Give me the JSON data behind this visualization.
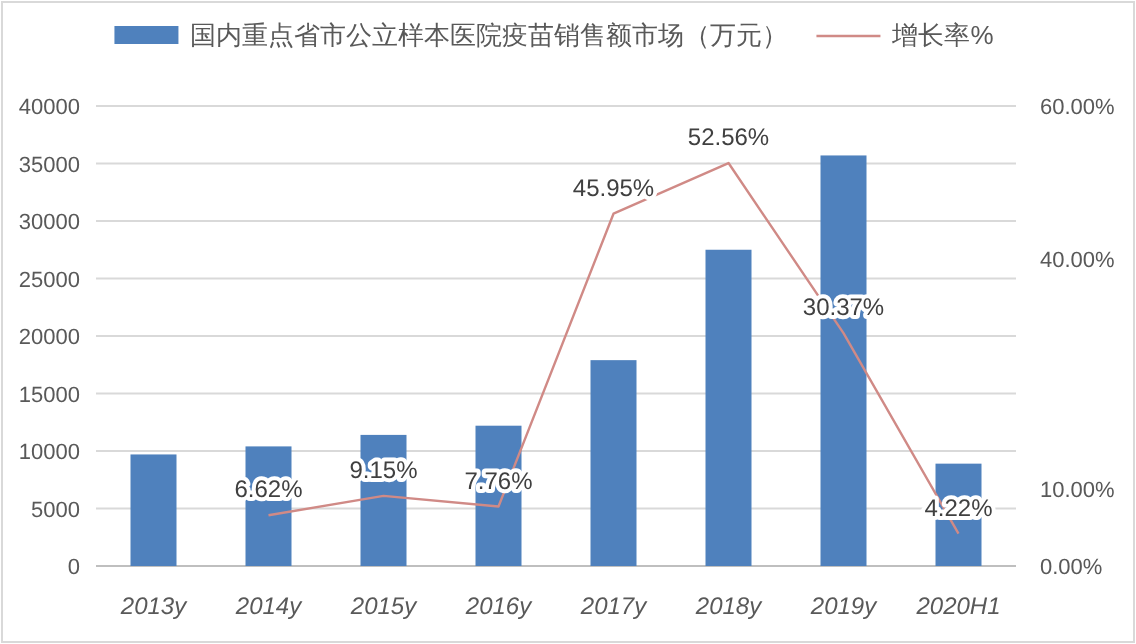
{
  "chart_data": {
    "type": "bar",
    "categories": [
      "2013y",
      "2014y",
      "2015y",
      "2016y",
      "2017y",
      "2018y",
      "2019y",
      "2020H1"
    ],
    "series": [
      {
        "name": "国内重点省市公立样本医院疫苗销售额市场（万元）",
        "color": "#4f81bd",
        "values": [
          9700,
          10400,
          11400,
          12200,
          17900,
          27500,
          35700,
          8900
        ]
      },
      {
        "name": "增长率%",
        "type": "line",
        "axis": "y2",
        "color": "#d08a86",
        "values": [
          null,
          6.62,
          9.15,
          7.76,
          45.95,
          52.56,
          30.37,
          4.22
        ],
        "value_labels": [
          null,
          "6.62%",
          "9.15%",
          "7.76%",
          "45.95%",
          "52.56%",
          "30.37%",
          "4.22%"
        ]
      }
    ],
    "ylim": [
      0,
      40000
    ],
    "yticks": [
      0,
      5000,
      10000,
      15000,
      20000,
      25000,
      30000,
      35000,
      40000
    ],
    "y2lim": [
      0,
      60
    ],
    "y2ticks": [
      {
        "value": 0,
        "label": "0.00%"
      },
      {
        "value": 10,
        "label": "10.00%"
      },
      {
        "value": 40,
        "label": "40.00%"
      },
      {
        "value": 60,
        "label": "60.00%"
      }
    ],
    "grid": "y",
    "legend": "top",
    "marker": "none"
  }
}
